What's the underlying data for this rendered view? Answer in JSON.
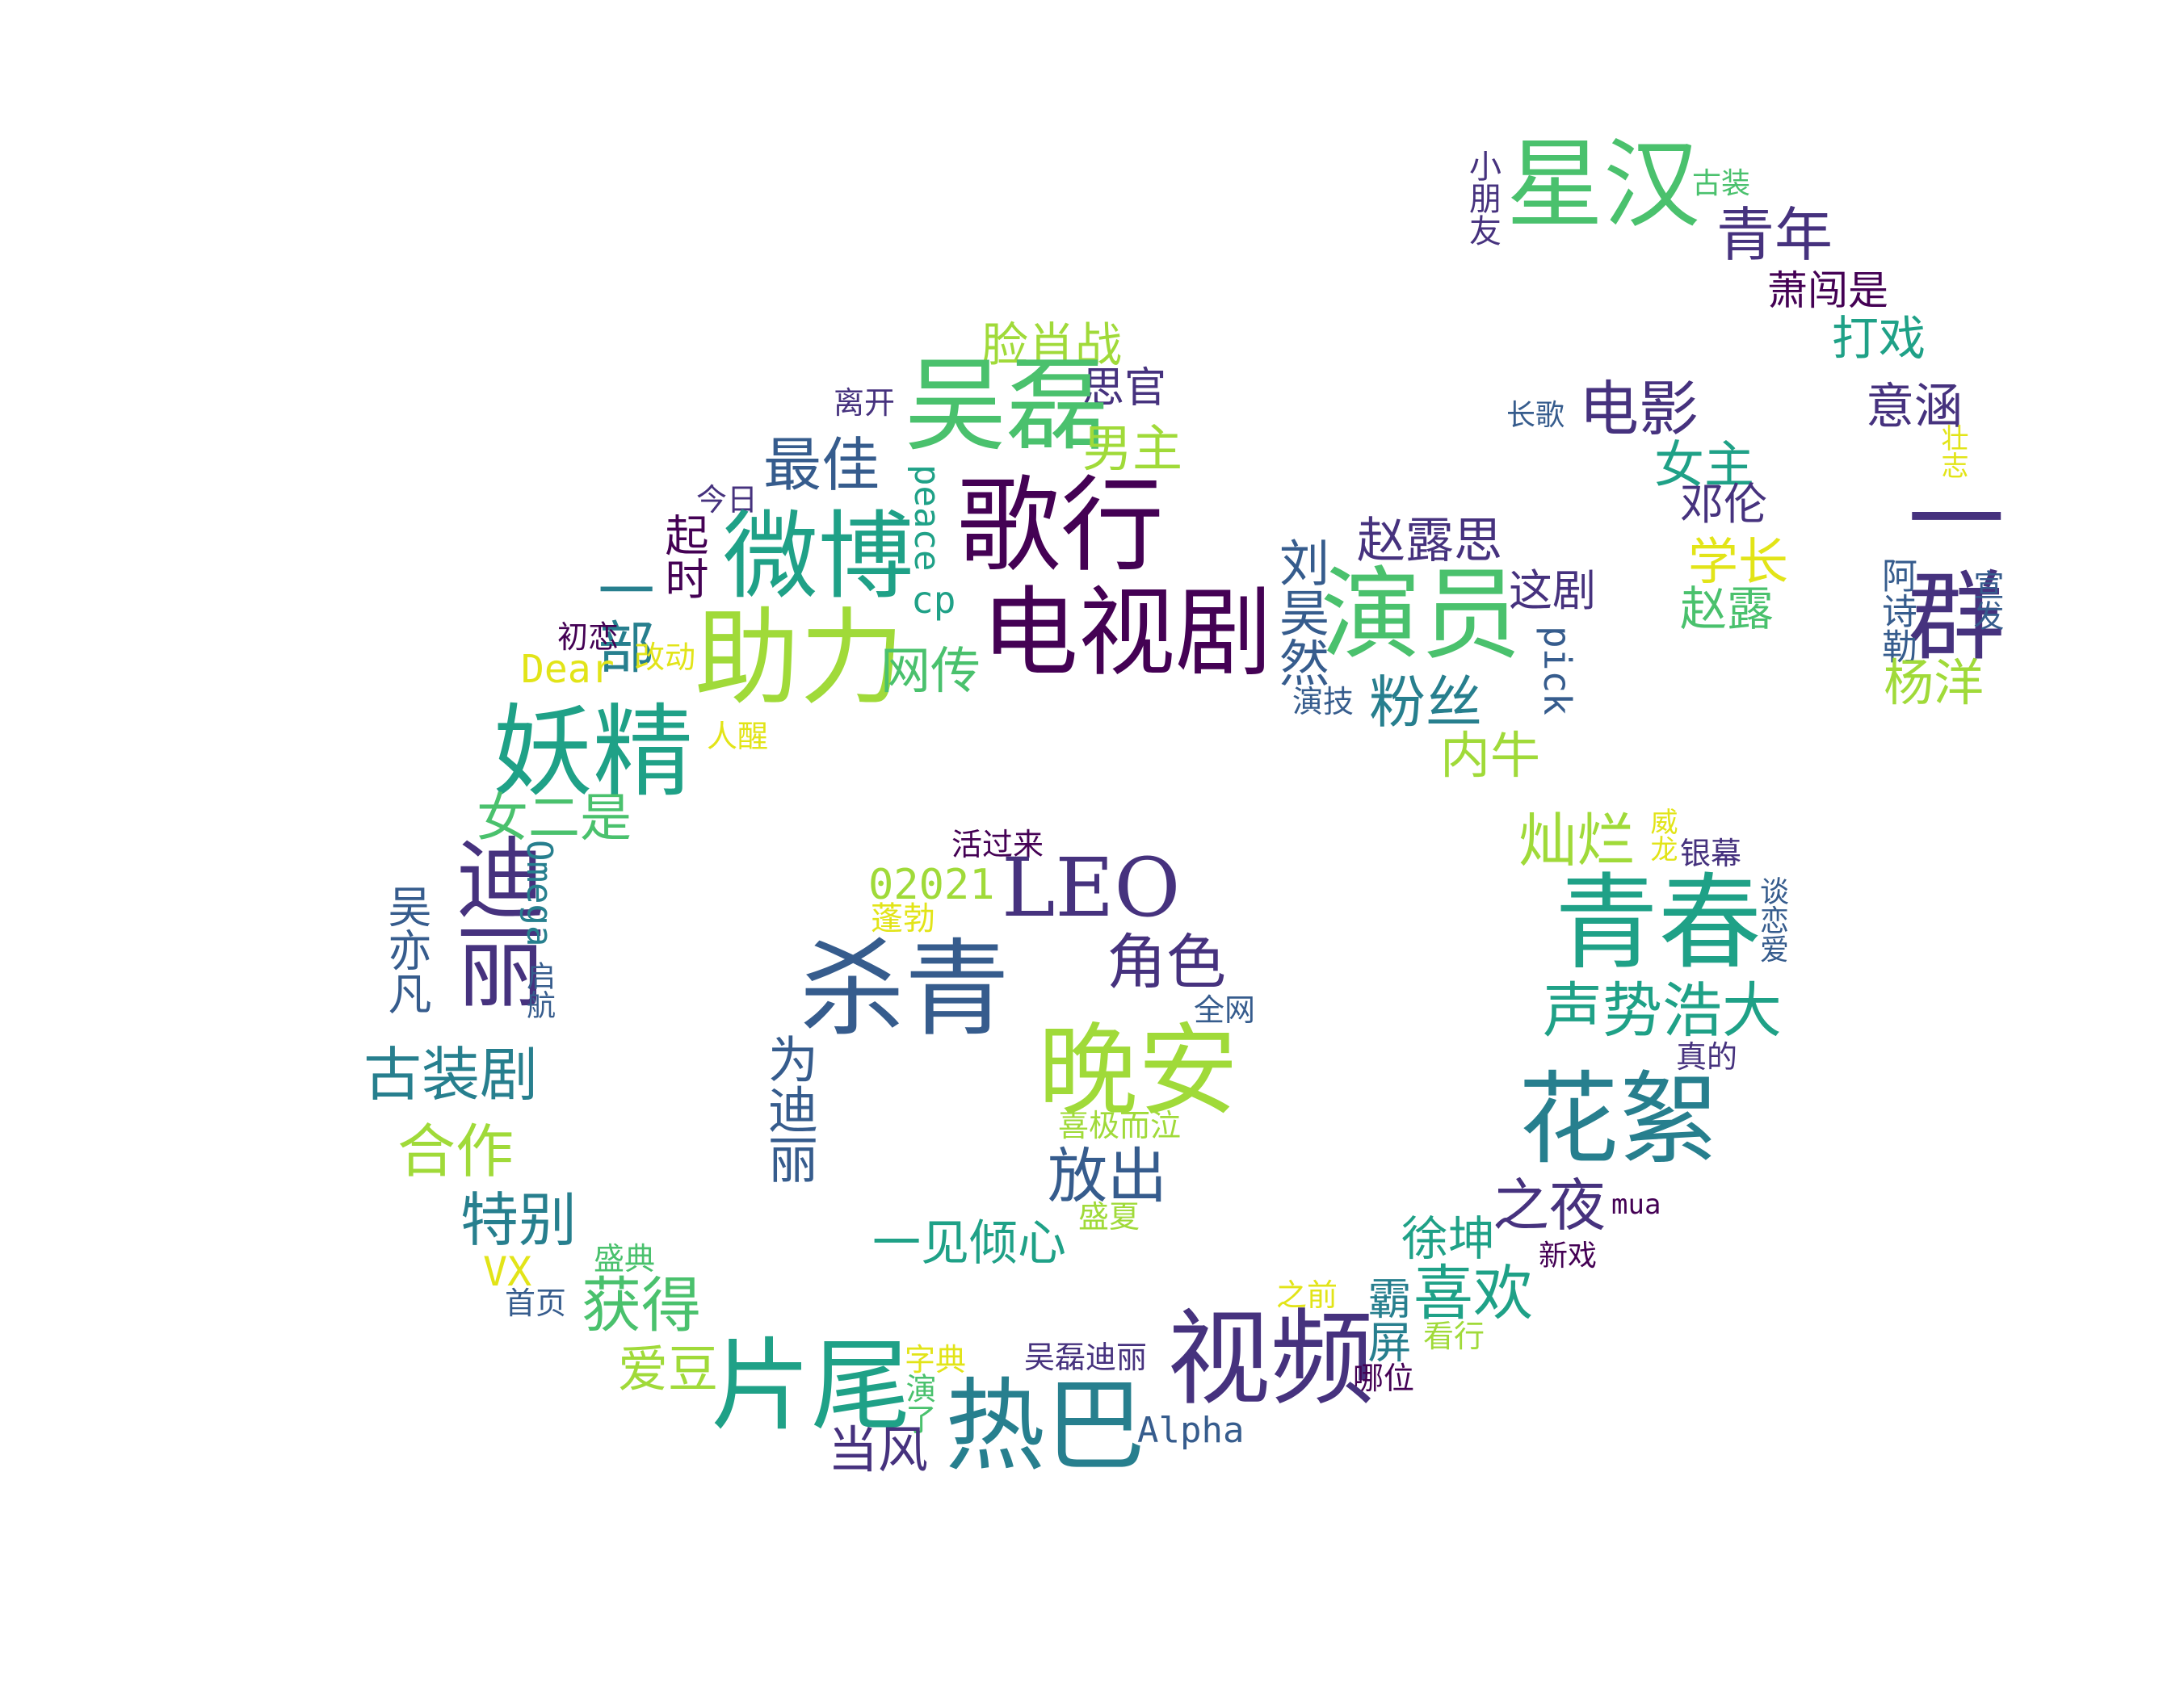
{
  "words": {
    "w001": "星汉",
    "w002": "青年",
    "w003": "小朋友",
    "w004": "古装",
    "w005": "萧闯是",
    "w006": "打戏",
    "w007": "电影",
    "w008": "长歌",
    "w009": "意涵",
    "w010": "壮志",
    "w011": "女主",
    "w012": "邓伦",
    "w013": "一群",
    "w014": "学长",
    "w015": "赵露",
    "w016": "阿诗勒",
    "w017": "宣发",
    "w018": "杨洋",
    "w019": "脸肖战",
    "w020": "思官",
    "w021": "吴磊",
    "w022": "离开",
    "w023": "男主",
    "w024": "最佳",
    "w025": "今日",
    "w026": "歌行",
    "w027": "peace",
    "w028": "起时",
    "w029": "微博",
    "w030": "一部",
    "w031": "cp",
    "w032": "初恋",
    "w033": "改动",
    "w034": "助力",
    "w035": "电视剧",
    "w036": "Dear",
    "w037": "网传",
    "w038": "赵露思",
    "w039": "演员",
    "w040": "刘昊然",
    "w041": "这剧",
    "w042": "pick",
    "w043": "粉丝",
    "w044": "演技",
    "w045": "妖精",
    "w046": "人醒",
    "w047": "内牛",
    "w048": "女二是",
    "w049": "灿烂",
    "w050": "威龙",
    "w051": "银幕",
    "w052": "活过来",
    "w053": "02021",
    "w054": "LEO",
    "w055": "迪丽",
    "w056": "Omega",
    "w057": "吴亦凡",
    "w058": "蓬勃",
    "w059": "青春",
    "w060": "谈恋爱",
    "w061": "启航",
    "w062": "杀青",
    "w063": "角色",
    "w064": "全网",
    "w065": "声势浩大",
    "w066": "晚安",
    "w067": "古装剧",
    "w068": "为迪丽",
    "w069": "真的",
    "w070": "花絮",
    "w071": "喜极而泣",
    "w072": "合作",
    "w073": "放出",
    "w074": "特别",
    "w075": "之夜",
    "w076": "mua",
    "w077": "盛夏",
    "w078": "一见倾心",
    "w079": "徐坤",
    "w080": "盛典",
    "w081": "VX",
    "w082": "新戏",
    "w083": "首页",
    "w084": "获得",
    "w085": "之前",
    "w086": "喜欢",
    "w087": "霸屏",
    "w088": "视频",
    "w089": "看行",
    "w090": "爱豆",
    "w091": "字典",
    "w092": "吴磊迪丽",
    "w093": "片尾",
    "w094": "哪位",
    "w095": "演了",
    "w096": "热巴",
    "w097": "Alpha",
    "w098": "当风"
  },
  "palette": {
    "dark-purple": "#440154",
    "indigo": "#46327e",
    "blue": "#365c8d",
    "teal-blue": "#277f8e",
    "teal": "#1fa187",
    "green": "#4ac16d",
    "lime": "#a0da39",
    "yellow": "#e2e418"
  }
}
